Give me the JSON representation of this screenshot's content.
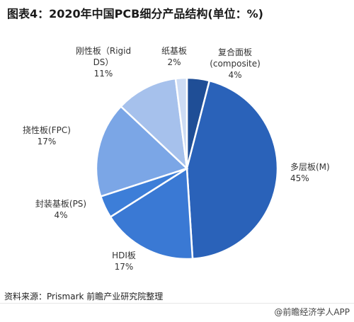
{
  "title": "图表4：2020年中国PCB细分产品结构(单位：%)",
  "source": "资料来源：Prismark 前瞻产业研究院整理",
  "brand": "@前瞻经济学人APP",
  "chart_data": {
    "type": "pie",
    "start_angle_deg": -90,
    "direction": "clockwise",
    "slices": [
      {
        "label": "复合面板",
        "label_line2": "(composite)",
        "percent_text": "4%",
        "value": 4,
        "color": "#1f4e96"
      },
      {
        "label": "多层板(M)",
        "label_line2": "",
        "percent_text": "45%",
        "value": 45,
        "color": "#2a62b9"
      },
      {
        "label": "HDI板",
        "label_line2": "",
        "percent_text": "17%",
        "value": 17,
        "color": "#3a79d4"
      },
      {
        "label": "封装基板(PS)",
        "label_line2": "",
        "percent_text": "4%",
        "value": 4,
        "color": "#3d7ed8"
      },
      {
        "label": "挠性板(FPC)",
        "label_line2": "",
        "percent_text": "17%",
        "value": 17,
        "color": "#7ba6e6"
      },
      {
        "label": "刚性板（Rigid",
        "label_line2": "DS）",
        "percent_text": "11%",
        "value": 11,
        "color": "#a6c1ec"
      },
      {
        "label": "纸基板",
        "label_line2": "",
        "percent_text": "2%",
        "value": 2,
        "color": "#cddcf4"
      }
    ]
  }
}
